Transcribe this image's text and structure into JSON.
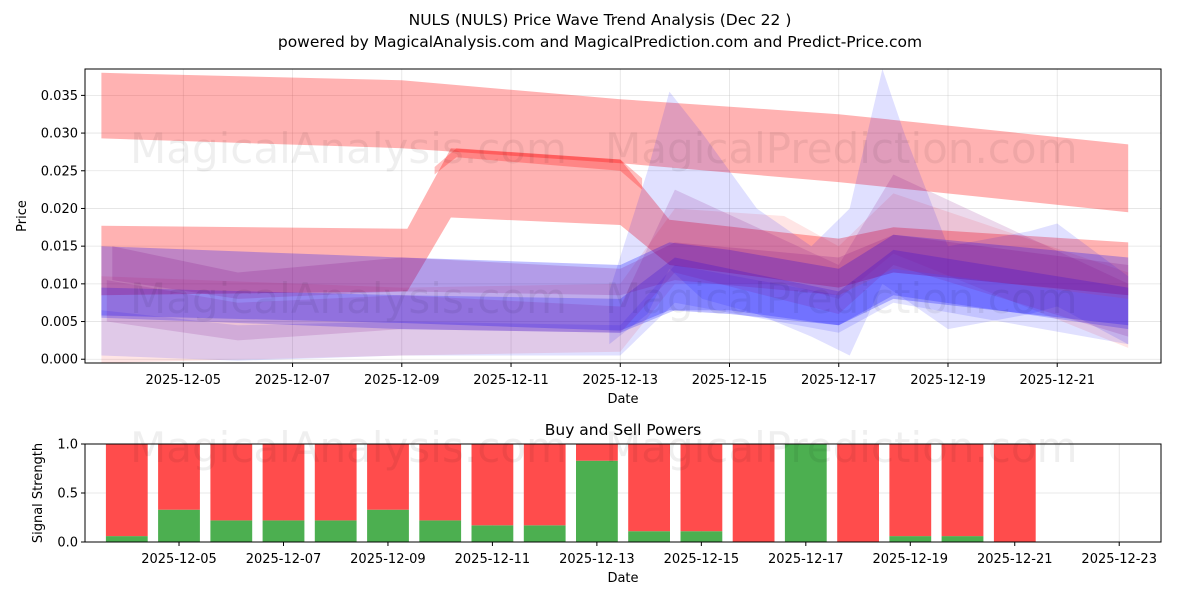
{
  "title": "NULS (NULS) Price Wave Trend Analysis (Dec 22 )",
  "subtitle": "powered by MagicalAnalysis.com and MagicalPrediction.com and Predict-Price.com",
  "watermark_left": "MagicalAnalysis.com",
  "watermark_right": "MagicalPrediction.com",
  "colors": {
    "red": "#ff0000",
    "blue": "#0000ff",
    "purple": "#800080",
    "buy": "#4caf50",
    "sell": "#ff4c4c"
  },
  "chart_data": [
    {
      "type": "area",
      "title": "",
      "xlabel": "Date",
      "ylabel": "Price",
      "ylim": [
        -0.0005,
        0.0385
      ],
      "yticks": [
        "0.000",
        "0.005",
        "0.010",
        "0.015",
        "0.020",
        "0.025",
        "0.030",
        "0.035"
      ],
      "ytick_values": [
        0,
        0.005,
        0.01,
        0.015,
        0.02,
        0.025,
        0.03,
        0.035
      ],
      "xticks": [
        "2025-12-05",
        "2025-12-07",
        "2025-12-09",
        "2025-12-11",
        "2025-12-13",
        "2025-12-15",
        "2025-12-17",
        "2025-12-19",
        "2025-12-21"
      ],
      "xtick_days": [
        5,
        7,
        9,
        11,
        13,
        15,
        17,
        19,
        21
      ],
      "xlim_days": [
        3.2,
        22.9
      ],
      "bands": [
        {
          "name": "red-long-trend",
          "color": "red",
          "opacity": 0.3,
          "x": [
            3.5,
            9,
            13,
            17,
            22.3
          ],
          "upper": [
            0.038,
            0.037,
            0.0345,
            0.0325,
            0.0285
          ],
          "lower": [
            0.0293,
            0.028,
            0.026,
            0.0235,
            0.0195
          ]
        },
        {
          "name": "red-mid-trend",
          "color": "red",
          "opacity": 0.3,
          "x": [
            3.5,
            9.1,
            9.9,
            13,
            13.9,
            17,
            18,
            22.3
          ],
          "upper": [
            0.0177,
            0.0173,
            0.028,
            0.0265,
            0.0185,
            0.016,
            0.0175,
            0.0155
          ],
          "lower": [
            0.0085,
            0.009,
            0.0188,
            0.0178,
            0.0125,
            0.0095,
            0.0115,
            0.0085
          ]
        },
        {
          "name": "red-dark-ridge",
          "color": "red",
          "opacity": 0.25,
          "x": [
            9.6,
            10,
            13,
            13.4
          ],
          "upper": [
            0.0255,
            0.028,
            0.0265,
            0.024
          ],
          "lower": [
            0.0245,
            0.0268,
            0.025,
            0.0225
          ]
        },
        {
          "name": "red-wide-cone",
          "color": "red",
          "opacity": 0.1,
          "x": [
            3.5,
            9,
            13,
            14,
            16,
            17,
            18,
            22.3
          ],
          "upper": [
            0.011,
            0.0095,
            0.01,
            0.02,
            0.019,
            0.015,
            0.022,
            0.0115
          ],
          "lower": [
            -0.0005,
            0.0005,
            0.001,
            0.01,
            0.01,
            0.008,
            0.014,
            0.0015
          ]
        },
        {
          "name": "blue-main",
          "color": "blue",
          "opacity": 0.25,
          "x": [
            3.5,
            9,
            13,
            13.9,
            15,
            17,
            18,
            22.3
          ],
          "upper": [
            0.015,
            0.0135,
            0.0125,
            0.0155,
            0.0145,
            0.012,
            0.0165,
            0.0135
          ],
          "lower": [
            0.0058,
            0.0048,
            0.0038,
            0.0065,
            0.006,
            0.0045,
            0.008,
            0.0045
          ]
        },
        {
          "name": "blue-second",
          "color": "blue",
          "opacity": 0.22,
          "x": [
            3.5,
            9,
            13,
            14,
            15,
            17,
            18,
            22.3
          ],
          "upper": [
            0.0095,
            0.0085,
            0.008,
            0.0135,
            0.012,
            0.009,
            0.0145,
            0.0095
          ],
          "lower": [
            0.0055,
            0.004,
            0.0035,
            0.0065,
            0.0065,
            0.0045,
            0.0085,
            0.004
          ]
        },
        {
          "name": "blue-spike",
          "color": "blue",
          "opacity": 0.12,
          "x": [
            12.8,
            13.5,
            13.9,
            14.5,
            15.5,
            16.5,
            17.2,
            17.8,
            18.2,
            19,
            20.5,
            21,
            22.3
          ],
          "upper": [
            0.009,
            0.025,
            0.0355,
            0.03,
            0.02,
            0.015,
            0.02,
            0.0385,
            0.03,
            0.015,
            0.017,
            0.018,
            0.011
          ],
          "lower": [
            0.002,
            0.006,
            0.012,
            0.008,
            0.006,
            0.003,
            0.0005,
            0.01,
            0.008,
            0.004,
            0.006,
            0.007,
            0.002
          ]
        },
        {
          "name": "blue-lower",
          "color": "blue",
          "opacity": 0.12,
          "x": [
            3.5,
            6,
            9,
            13,
            14,
            17,
            18,
            22.3
          ],
          "upper": [
            0.0065,
            0.0045,
            0.005,
            0.0045,
            0.0125,
            0.0085,
            0.012,
            0.008
          ],
          "lower": [
            0.0005,
            -0.0002,
            0.0005,
            0.0005,
            0.0075,
            0.0035,
            0.0075,
            0.002
          ]
        },
        {
          "name": "purple-1",
          "color": "purple",
          "opacity": 0.18,
          "x": [
            3.7,
            6,
            9,
            13,
            14,
            17,
            18,
            22.3
          ],
          "upper": [
            0.015,
            0.0115,
            0.0135,
            0.012,
            0.0155,
            0.0135,
            0.0165,
            0.0125
          ],
          "lower": [
            0.0105,
            0.008,
            0.009,
            0.0085,
            0.0105,
            0.0085,
            0.012,
            0.008
          ]
        },
        {
          "name": "purple-2",
          "color": "purple",
          "opacity": 0.15,
          "x": [
            3.6,
            6,
            9,
            13,
            14,
            17,
            18,
            22.3
          ],
          "upper": [
            0.0105,
            0.0075,
            0.0085,
            0.007,
            0.0225,
            0.0125,
            0.0245,
            0.01
          ],
          "lower": [
            0.005,
            0.0025,
            0.004,
            0.0035,
            0.0115,
            0.006,
            0.0125,
            0.003
          ]
        }
      ]
    },
    {
      "type": "bar",
      "title": "Buy and Sell Powers",
      "xlabel": "Date",
      "ylabel": "Signal Strength",
      "ylim": [
        0,
        1
      ],
      "yticks": [
        "0.0",
        "0.5",
        "1.0"
      ],
      "ytick_values": [
        0,
        0.5,
        1
      ],
      "xticks": [
        "2025-12-05",
        "2025-12-07",
        "2025-12-09",
        "2025-12-11",
        "2025-12-13",
        "2025-12-15",
        "2025-12-17",
        "2025-12-19",
        "2025-12-21",
        "2025-12-23"
      ],
      "xtick_days": [
        5,
        7,
        9,
        11,
        13,
        15,
        17,
        19,
        21,
        23
      ],
      "xlim_days": [
        3.2,
        23.8
      ],
      "days": [
        4,
        5,
        6,
        7,
        8,
        9,
        10,
        11,
        12,
        13,
        14,
        15,
        16,
        17,
        18,
        19,
        20,
        21
      ],
      "series": [
        {
          "name": "Buy",
          "color": "buy",
          "values": [
            0.06,
            0.33,
            0.22,
            0.22,
            0.22,
            0.33,
            0.22,
            0.17,
            0.17,
            0.83,
            0.11,
            0.11,
            0.0,
            1.0,
            0.0,
            0.06,
            0.06,
            0.0
          ]
        },
        {
          "name": "Sell",
          "color": "sell",
          "values": [
            0.94,
            0.67,
            0.78,
            0.78,
            0.78,
            0.67,
            0.78,
            0.83,
            0.83,
            0.17,
            0.89,
            0.89,
            1.0,
            0.0,
            1.0,
            0.94,
            0.94,
            1.0
          ]
        }
      ]
    }
  ]
}
